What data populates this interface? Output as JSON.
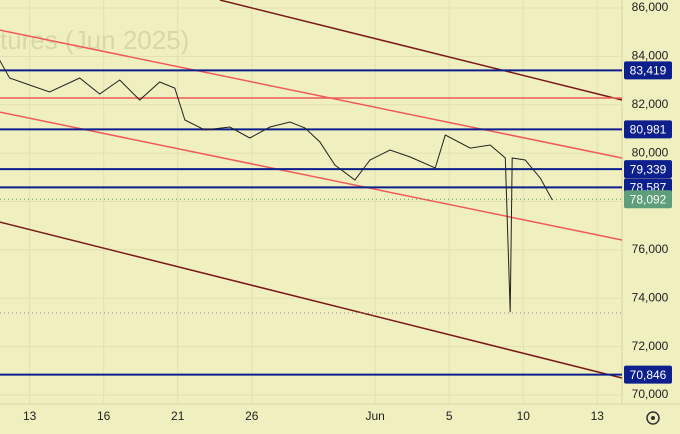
{
  "chart_data": {
    "type": "line",
    "subtitle": "tures (Jun 2025)",
    "background": "#efefbf",
    "x": [
      -1.22,
      -0.81,
      0,
      0.81,
      2.03,
      2.84,
      3.65,
      4.46,
      5.27,
      5.88,
      6.29,
      7.1,
      8.11,
      8.92,
      9.74,
      10.55,
      11.16,
      11.76,
      12.37,
      13.18,
      13.79,
      14.6,
      15.42,
      16.43,
      16.84,
      17.85,
      18.66,
      19.27,
      19.47,
      19.55,
      20.08,
      20.69,
      21.18
    ],
    "values": [
      83850,
      83105,
      82815,
      82525,
      83105,
      82445,
      83025,
      82195,
      82940,
      82690,
      81370,
      80955,
      81080,
      80625,
      81080,
      81285,
      81040,
      80460,
      79510,
      78890,
      79715,
      80130,
      79840,
      79385,
      80750,
      80210,
      80335,
      79800,
      73430,
      79800,
      79715,
      78970,
      78060
    ],
    "color": "#222222",
    "levels": {
      "values": [
        83419,
        80981,
        79339,
        78587,
        70846
      ],
      "value_labels": [
        "83,419",
        "80,981",
        "79,339",
        "78,587",
        "70,846"
      ],
      "color": "#0d1f8c"
    },
    "last_price": {
      "value": 78092,
      "label": "78,092",
      "color": "#5e9e7a"
    },
    "dotted_levels": [
      73390
    ],
    "trend_lines": [
      {
        "color": "#7a1a1a",
        "x": [
          7.71,
          24
        ],
        "values": [
          86330,
          82196
        ]
      },
      {
        "color": "#7a1a1a",
        "x": [
          -1.22,
          24
        ],
        "values": [
          77152,
          70704
        ]
      },
      {
        "color": "#ef5a5a",
        "x": [
          -1.22,
          24
        ],
        "values": [
          85090,
          79798
        ]
      },
      {
        "color": "#ef5a5a",
        "x": [
          -1.22,
          24
        ],
        "values": [
          81700,
          76408
        ]
      },
      {
        "color": "#ef5a5a",
        "x": [
          -1.22,
          24
        ],
        "values": [
          82280,
          82280
        ]
      }
    ],
    "xlim": [
      -1.2,
      24
    ],
    "ylim": [
      69630,
      86330
    ],
    "xticks": [
      {
        "value": 0,
        "label": "13"
      },
      {
        "value": 3,
        "label": "16"
      },
      {
        "value": 6,
        "label": "21"
      },
      {
        "value": 9,
        "label": "26"
      },
      {
        "value": 14,
        "label": "Jun"
      },
      {
        "value": 17,
        "label": "5"
      },
      {
        "value": 20,
        "label": "10"
      },
      {
        "value": 23,
        "label": "13"
      }
    ],
    "yticks": [
      {
        "value": 70000,
        "label": "70,000"
      },
      {
        "value": 72000,
        "label": "72,000"
      },
      {
        "value": 74000,
        "label": "74,000"
      },
      {
        "value": 76000,
        "label": "76,000"
      },
      {
        "value": 78000,
        "label": "78,000"
      },
      {
        "value": 80000,
        "label": "80,000"
      },
      {
        "value": 82000,
        "label": "82,000"
      },
      {
        "value": 84000,
        "label": "84,000"
      },
      {
        "value": 86000,
        "label": "86,000"
      }
    ],
    "grid": true
  }
}
